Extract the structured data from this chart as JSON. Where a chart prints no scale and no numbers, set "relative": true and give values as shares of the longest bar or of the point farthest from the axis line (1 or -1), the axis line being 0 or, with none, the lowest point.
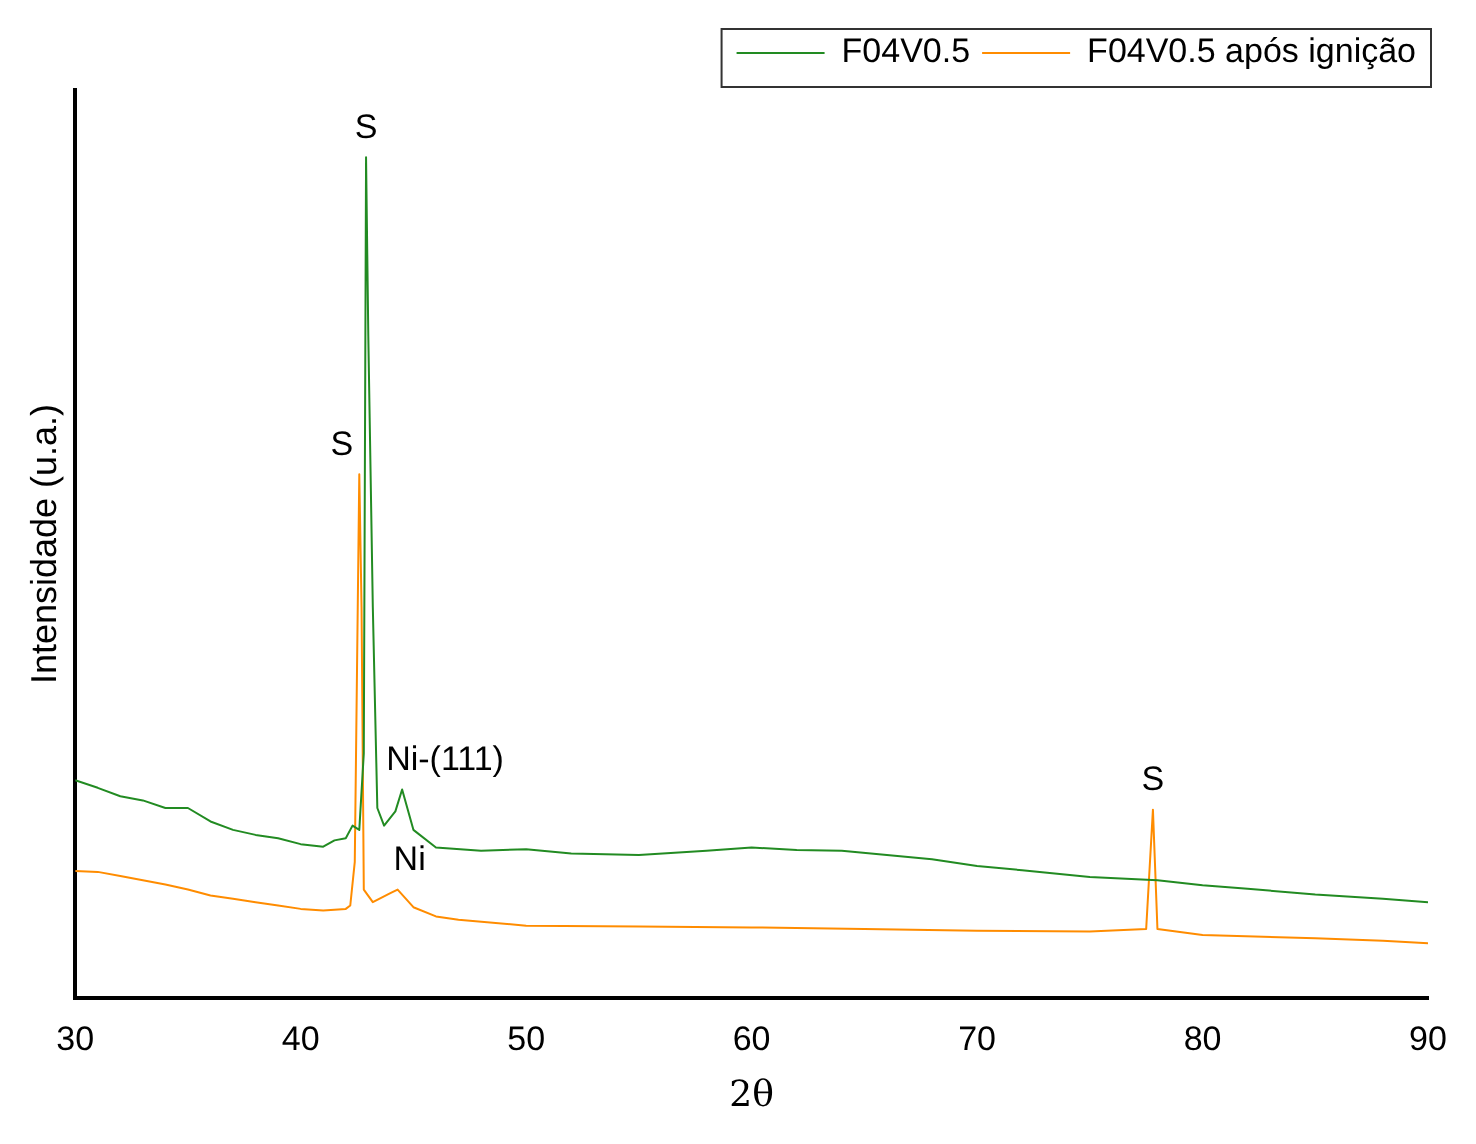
{
  "chart_data": {
    "type": "line",
    "xlabel": "2θ",
    "ylabel": "Intensidade (u.a.)",
    "relative": true,
    "xlim": [
      30,
      90
    ],
    "xticks": [
      30,
      40,
      50,
      60,
      70,
      80,
      90
    ],
    "legend": "top right",
    "grid": false,
    "marker": "none",
    "line_style": "solid",
    "series": [
      {
        "name": "F04V0.5",
        "color": "#228b22",
        "x": [
          30,
          31,
          32,
          33,
          34,
          35,
          36,
          37,
          38,
          39,
          40,
          41,
          41.5,
          42,
          42.3,
          42.6,
          42.8,
          42.9,
          43.0,
          43.2,
          43.4,
          43.7,
          44.2,
          44.5,
          45,
          46,
          48,
          50,
          52,
          55,
          58,
          60,
          62,
          64,
          66,
          68,
          70,
          72,
          75,
          78,
          80,
          82,
          85,
          88,
          90
        ],
        "values": [
          0.259,
          0.25,
          0.24,
          0.235,
          0.226,
          0.226,
          0.21,
          0.2,
          0.194,
          0.19,
          0.183,
          0.18,
          0.1875,
          0.19,
          0.205,
          0.2,
          0.291,
          1,
          0.787,
          0.465,
          0.226,
          0.205,
          0.222,
          0.248,
          0.2,
          0.179,
          0.175,
          0.177,
          0.172,
          0.17,
          0.175,
          0.179,
          0.176,
          0.175,
          0.17,
          0.165,
          0.157,
          0.152,
          0.144,
          0.14,
          0.134,
          0.13,
          0.123,
          0.118,
          0.114
        ]
      },
      {
        "name": "F04V0.5 após ignição",
        "color": "#ff8c00",
        "x": [
          30,
          31,
          32,
          33,
          34,
          35,
          36,
          37,
          38,
          39,
          40,
          41,
          42,
          42.2,
          42.4,
          42.6,
          42.7,
          42.8,
          43.2,
          44,
          44.3,
          45,
          46,
          47,
          50,
          55,
          60,
          65,
          70,
          75,
          77.5,
          77.8,
          78.0,
          80,
          85,
          88,
          90
        ],
        "values": [
          0.151,
          0.15,
          0.145,
          0.14,
          0.135,
          0.129,
          0.122,
          0.118,
          0.114,
          0.11,
          0.106,
          0.104,
          0.106,
          0.11,
          0.162,
          0.623,
          0.465,
          0.129,
          0.114,
          0.125,
          0.129,
          0.108,
          0.097,
          0.093,
          0.086,
          0.085,
          0.084,
          0.082,
          0.08,
          0.079,
          0.082,
          0.224,
          0.082,
          0.075,
          0.071,
          0.068,
          0.065
        ]
      }
    ],
    "annotations": [
      {
        "text": "S",
        "x": 42.9,
        "y": 1
      },
      {
        "text": "S",
        "x": 42.6,
        "y": 0.623
      },
      {
        "text": "Ni-(111)",
        "x": 44.5,
        "y": 0.248
      },
      {
        "text": "Ni",
        "x": 44.3,
        "y": 0.129
      },
      {
        "text": "S",
        "x": 77.8,
        "y": 0.224
      }
    ]
  }
}
